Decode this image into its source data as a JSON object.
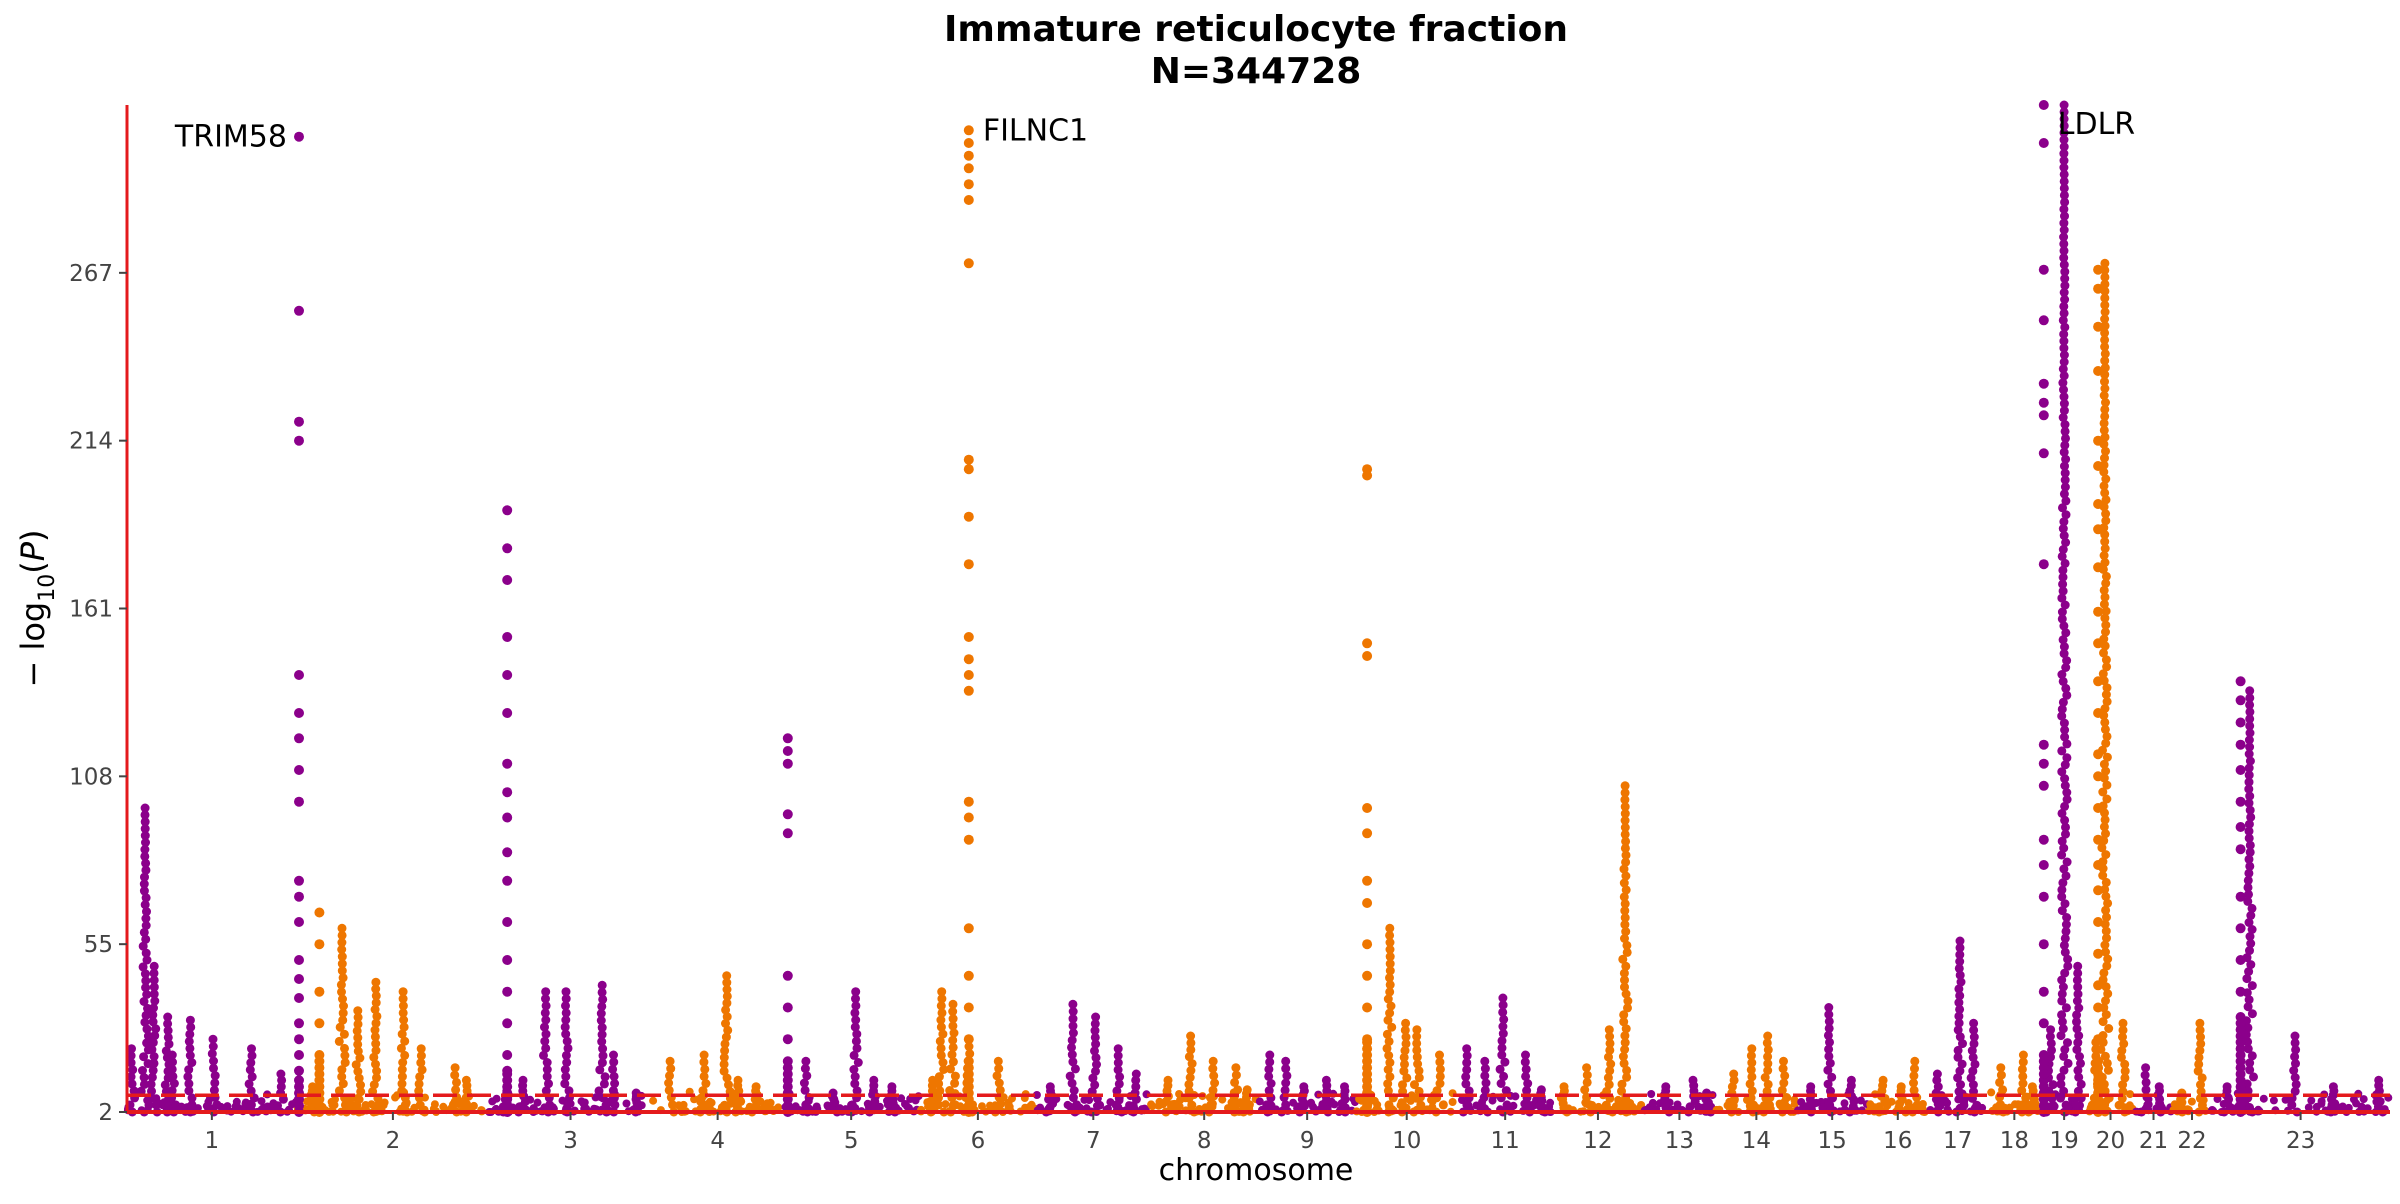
{
  "chart_data": {
    "type": "scatter",
    "subtype": "manhattan",
    "title": "Immature reticulocyte fraction",
    "subtitle": "N=344728",
    "xlabel": "chromosome",
    "ylabel": "-log10(P)",
    "ylim": [
      2,
      320
    ],
    "yticks": [
      2,
      55,
      108,
      161,
      214,
      267
    ],
    "significance_threshold": 7.3,
    "colors": {
      "odd": "#8B008B",
      "even": "#EE7600",
      "threshold": "#E41A1C",
      "axis": "#E41A1C"
    },
    "grid": false,
    "legend": "none",
    "chromosomes": [
      {
        "label": "1",
        "x_start": 0.0,
        "x_end": 0.075,
        "color": "odd",
        "peaks": [
          {
            "x": 0.002,
            "p": 22
          },
          {
            "x": 0.008,
            "p": 98
          },
          {
            "x": 0.012,
            "p": 48
          },
          {
            "x": 0.018,
            "p": 32
          },
          {
            "x": 0.02,
            "p": 20
          },
          {
            "x": 0.028,
            "p": 31
          },
          {
            "x": 0.038,
            "p": 25
          },
          {
            "x": 0.055,
            "p": 22
          },
          {
            "x": 0.068,
            "p": 14
          }
        ]
      },
      {
        "label": "2",
        "x_start": 0.075,
        "x_end": 0.16,
        "color": "even",
        "peaks": [
          {
            "x": 0.082,
            "p": 10
          },
          {
            "x": 0.095,
            "p": 60
          },
          {
            "x": 0.102,
            "p": 34
          },
          {
            "x": 0.11,
            "p": 43
          },
          {
            "x": 0.122,
            "p": 40
          },
          {
            "x": 0.13,
            "p": 22
          },
          {
            "x": 0.145,
            "p": 16
          },
          {
            "x": 0.15,
            "p": 12
          }
        ]
      },
      {
        "label": "3",
        "x_start": 0.16,
        "x_end": 0.232,
        "color": "odd",
        "peaks": [
          {
            "x": 0.168,
            "p": 10
          },
          {
            "x": 0.175,
            "p": 12
          },
          {
            "x": 0.185,
            "p": 40
          },
          {
            "x": 0.194,
            "p": 40
          },
          {
            "x": 0.21,
            "p": 42
          },
          {
            "x": 0.215,
            "p": 20
          },
          {
            "x": 0.225,
            "p": 8
          }
        ]
      },
      {
        "label": "4",
        "x_start": 0.232,
        "x_end": 0.29,
        "color": "even",
        "peaks": [
          {
            "x": 0.24,
            "p": 18
          },
          {
            "x": 0.255,
            "p": 20
          },
          {
            "x": 0.265,
            "p": 45
          },
          {
            "x": 0.27,
            "p": 12
          },
          {
            "x": 0.278,
            "p": 10
          }
        ]
      },
      {
        "label": "5",
        "x_start": 0.29,
        "x_end": 0.35,
        "color": "odd",
        "peaks": [
          {
            "x": 0.3,
            "p": 18
          },
          {
            "x": 0.312,
            "p": 8
          },
          {
            "x": 0.322,
            "p": 40
          },
          {
            "x": 0.33,
            "p": 12
          },
          {
            "x": 0.338,
            "p": 10
          }
        ]
      },
      {
        "label": "6",
        "x_start": 0.35,
        "x_end": 0.402,
        "color": "even",
        "peaks": [
          {
            "x": 0.356,
            "p": 12
          },
          {
            "x": 0.36,
            "p": 40
          },
          {
            "x": 0.365,
            "p": 36
          },
          {
            "x": 0.372,
            "p": 25
          },
          {
            "x": 0.385,
            "p": 18
          }
        ]
      },
      {
        "label": "7",
        "x_start": 0.402,
        "x_end": 0.452,
        "color": "odd",
        "peaks": [
          {
            "x": 0.408,
            "p": 10
          },
          {
            "x": 0.418,
            "p": 36
          },
          {
            "x": 0.428,
            "p": 32
          },
          {
            "x": 0.438,
            "p": 22
          },
          {
            "x": 0.446,
            "p": 14
          }
        ]
      },
      {
        "label": "8",
        "x_start": 0.452,
        "x_end": 0.5,
        "color": "even",
        "peaks": [
          {
            "x": 0.46,
            "p": 12
          },
          {
            "x": 0.47,
            "p": 26
          },
          {
            "x": 0.48,
            "p": 18
          },
          {
            "x": 0.49,
            "p": 16
          },
          {
            "x": 0.495,
            "p": 9
          }
        ]
      },
      {
        "label": "9",
        "x_start": 0.5,
        "x_end": 0.543,
        "color": "odd",
        "peaks": [
          {
            "x": 0.505,
            "p": 20
          },
          {
            "x": 0.512,
            "p": 18
          },
          {
            "x": 0.52,
            "p": 10
          },
          {
            "x": 0.53,
            "p": 12
          },
          {
            "x": 0.538,
            "p": 10
          }
        ]
      },
      {
        "label": "10",
        "x_start": 0.543,
        "x_end": 0.588,
        "color": "even",
        "peaks": [
          {
            "x": 0.548,
            "p": 10
          },
          {
            "x": 0.558,
            "p": 60
          },
          {
            "x": 0.565,
            "p": 30
          },
          {
            "x": 0.57,
            "p": 28
          },
          {
            "x": 0.58,
            "p": 20
          }
        ]
      },
      {
        "label": "11",
        "x_start": 0.588,
        "x_end": 0.63,
        "color": "odd",
        "peaks": [
          {
            "x": 0.592,
            "p": 22
          },
          {
            "x": 0.6,
            "p": 18
          },
          {
            "x": 0.608,
            "p": 38
          },
          {
            "x": 0.618,
            "p": 20
          },
          {
            "x": 0.625,
            "p": 9
          }
        ]
      },
      {
        "label": "12",
        "x_start": 0.63,
        "x_end": 0.67,
        "color": "even",
        "peaks": [
          {
            "x": 0.635,
            "p": 10
          },
          {
            "x": 0.645,
            "p": 16
          },
          {
            "x": 0.655,
            "p": 28
          },
          {
            "x": 0.662,
            "p": 105
          }
        ]
      },
      {
        "label": "13",
        "x_start": 0.67,
        "x_end": 0.702,
        "color": "odd",
        "peaks": [
          {
            "x": 0.68,
            "p": 10
          },
          {
            "x": 0.692,
            "p": 12
          },
          {
            "x": 0.698,
            "p": 8
          }
        ]
      },
      {
        "label": "14",
        "x_start": 0.702,
        "x_end": 0.738,
        "color": "even",
        "peaks": [
          {
            "x": 0.71,
            "p": 14
          },
          {
            "x": 0.718,
            "p": 22
          },
          {
            "x": 0.725,
            "p": 26
          },
          {
            "x": 0.732,
            "p": 18
          }
        ]
      },
      {
        "label": "15",
        "x_start": 0.738,
        "x_end": 0.769,
        "color": "odd",
        "peaks": [
          {
            "x": 0.744,
            "p": 10
          },
          {
            "x": 0.752,
            "p": 35
          },
          {
            "x": 0.762,
            "p": 12
          }
        ]
      },
      {
        "label": "16",
        "x_start": 0.769,
        "x_end": 0.796,
        "color": "even",
        "peaks": [
          {
            "x": 0.776,
            "p": 12
          },
          {
            "x": 0.784,
            "p": 10
          },
          {
            "x": 0.79,
            "p": 18
          }
        ]
      },
      {
        "label": "17",
        "x_start": 0.796,
        "x_end": 0.822,
        "color": "odd",
        "peaks": [
          {
            "x": 0.8,
            "p": 14
          },
          {
            "x": 0.81,
            "p": 56
          },
          {
            "x": 0.816,
            "p": 30
          }
        ]
      },
      {
        "label": "18",
        "x_start": 0.822,
        "x_end": 0.846,
        "color": "even",
        "peaks": [
          {
            "x": 0.828,
            "p": 16
          },
          {
            "x": 0.838,
            "p": 20
          },
          {
            "x": 0.842,
            "p": 10
          }
        ]
      },
      {
        "label": "19",
        "x_start": 0.846,
        "x_end": 0.866,
        "color": "odd",
        "peaks": [
          {
            "x": 0.85,
            "p": 28
          },
          {
            "x": 0.856,
            "p": 320
          },
          {
            "x": 0.862,
            "p": 48
          }
        ]
      },
      {
        "label": "20",
        "x_start": 0.866,
        "x_end": 0.887,
        "color": "even",
        "peaks": [
          {
            "x": 0.87,
            "p": 24
          },
          {
            "x": 0.874,
            "p": 270
          },
          {
            "x": 0.882,
            "p": 30
          }
        ]
      },
      {
        "label": "21",
        "x_start": 0.887,
        "x_end": 0.904,
        "color": "odd",
        "peaks": [
          {
            "x": 0.892,
            "p": 16
          },
          {
            "x": 0.898,
            "p": 10
          }
        ]
      },
      {
        "label": "22",
        "x_start": 0.904,
        "x_end": 0.921,
        "color": "even",
        "peaks": [
          {
            "x": 0.908,
            "p": 8
          },
          {
            "x": 0.916,
            "p": 30
          }
        ]
      },
      {
        "label": "23",
        "x_start": 0.921,
        "x_end": 1.0,
        "color": "odd",
        "peaks": [
          {
            "x": 0.928,
            "p": 10
          },
          {
            "x": 0.938,
            "p": 135
          },
          {
            "x": 0.958,
            "p": 26
          },
          {
            "x": 0.975,
            "p": 10
          },
          {
            "x": 0.995,
            "p": 12
          }
        ]
      }
    ],
    "top_hits": [
      {
        "chr": "1",
        "x": 0.076,
        "values": [
          310,
          255,
          220,
          214,
          140,
          128,
          120,
          110,
          100,
          75,
          70,
          62,
          50,
          44,
          38,
          30,
          25,
          20,
          15,
          12
        ]
      },
      {
        "chr": "2",
        "x": 0.085,
        "values": [
          65,
          55,
          40,
          30,
          20
        ]
      },
      {
        "chr": "3",
        "x": 0.168,
        "values": [
          192,
          180,
          170,
          152,
          140,
          128,
          112,
          103,
          95,
          84,
          75,
          62,
          50,
          40,
          30,
          20,
          15
        ]
      },
      {
        "chr": "5",
        "x": 0.292,
        "values": [
          120,
          116,
          112,
          96,
          90,
          45,
          35,
          25,
          18
        ]
      },
      {
        "chr": "6",
        "x": 0.372,
        "values": [
          312,
          308,
          304,
          300,
          295,
          290,
          270,
          208,
          205,
          190,
          175,
          152,
          145,
          140,
          135,
          100,
          95,
          88,
          60,
          45,
          35,
          25,
          18
        ]
      },
      {
        "chr": "10",
        "x": 0.548,
        "values": [
          205,
          203,
          150,
          146,
          98,
          90,
          75,
          68,
          55,
          45,
          35,
          25
        ]
      },
      {
        "chr": "19",
        "x": 0.847,
        "values": [
          320,
          308,
          268,
          252,
          232,
          226,
          222,
          210,
          175,
          118,
          112,
          105,
          88,
          80,
          70,
          55,
          40,
          30,
          20
        ]
      },
      {
        "chr": "20",
        "x": 0.871,
        "values": [
          268,
          262,
          250,
          236,
          214,
          206,
          194,
          186,
          174,
          160,
          150,
          138,
          128,
          115,
          108,
          98,
          88,
          80,
          72,
          62,
          52,
          42,
          35,
          25,
          18
        ]
      },
      {
        "chr": "23",
        "x": 0.934,
        "values": [
          138,
          132,
          125,
          118,
          110,
          100,
          92,
          85,
          70,
          60,
          50,
          40,
          32
        ]
      }
    ],
    "annotations": [
      {
        "label": "TRIM58",
        "x": 0.076,
        "p": 310,
        "anchor": "end"
      },
      {
        "label": "FILNC1",
        "x": 0.372,
        "p": 312,
        "anchor": "start"
      },
      {
        "label": "LDLR",
        "x": 0.847,
        "p": 314,
        "anchor": "start"
      }
    ]
  }
}
